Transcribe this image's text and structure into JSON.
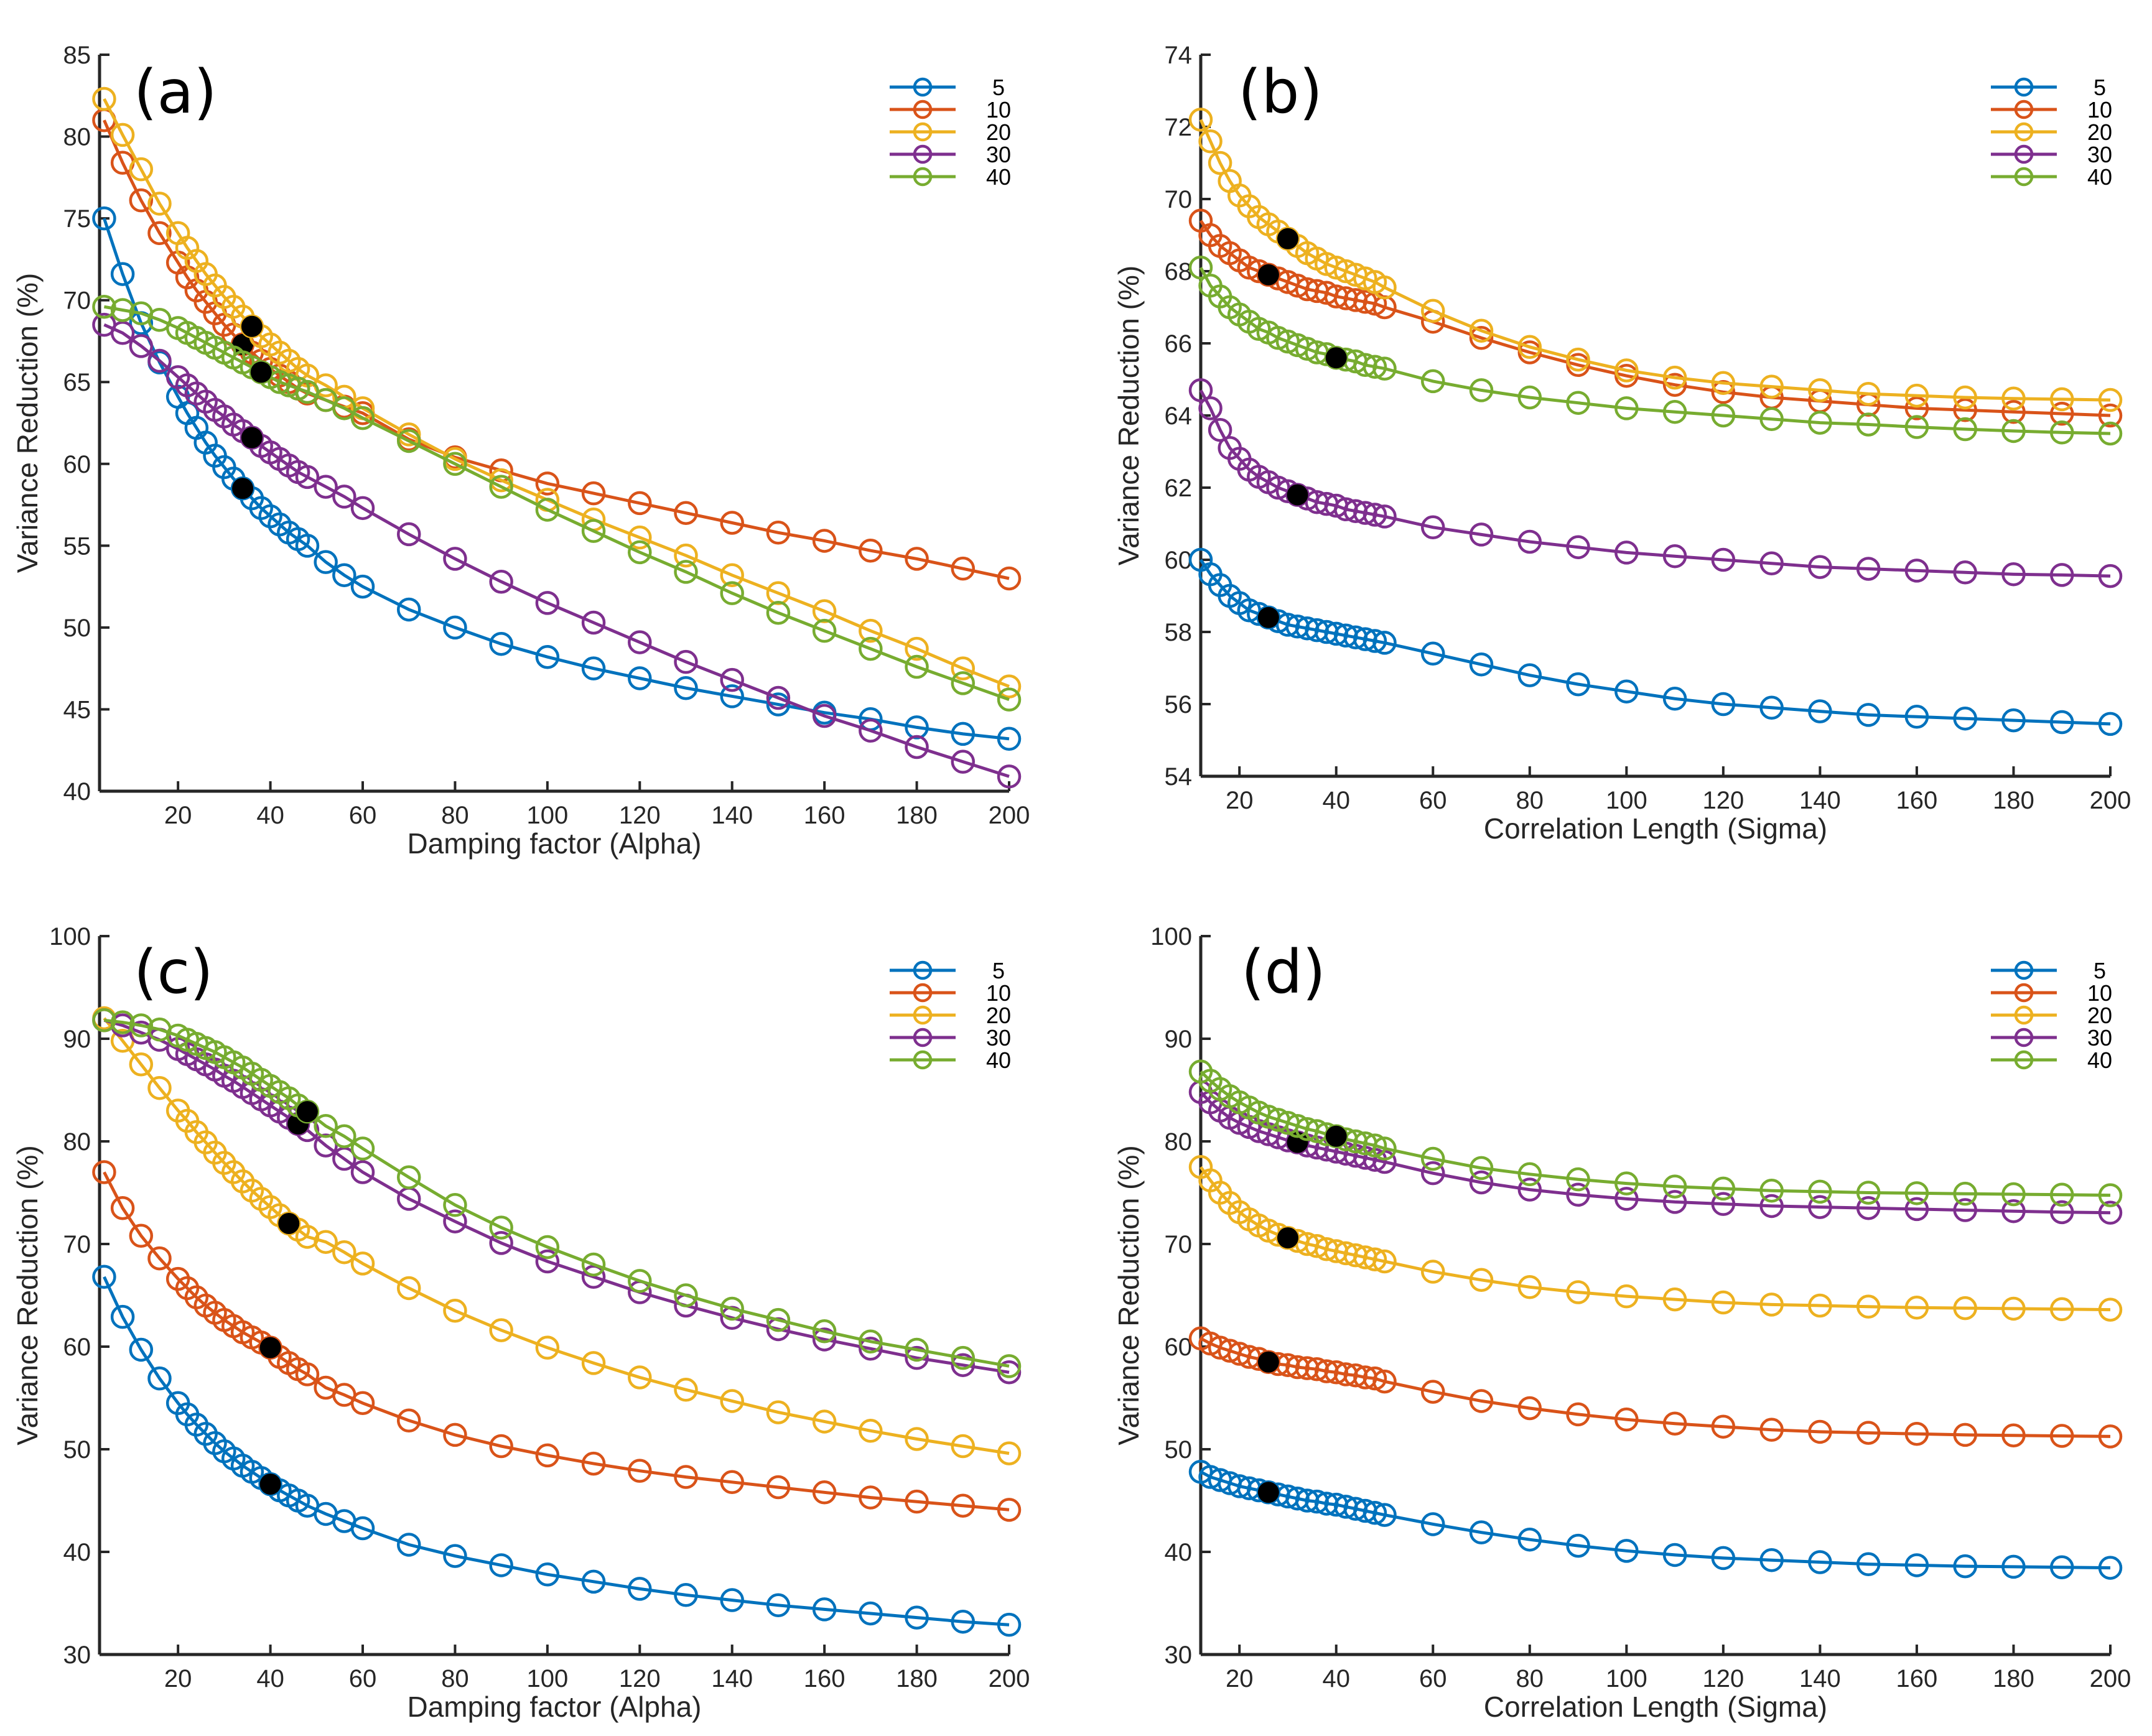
{
  "figure": {
    "series_names": [
      "5",
      "10",
      "20",
      "30",
      "40"
    ],
    "colors": [
      "#0072BD",
      "#D95319",
      "#EDB120",
      "#7E2F8E",
      "#77AC30"
    ],
    "optimum_marker_color": "#000000"
  },
  "chart_data": [
    {
      "panel": "(a)",
      "type": "line",
      "xlabel": "Damping factor (Alpha)",
      "ylabel": "Variance Reduction (%)",
      "xlim": [
        3,
        200
      ],
      "ylim": [
        40,
        85
      ],
      "xticks": [
        20,
        40,
        60,
        80,
        100,
        120,
        140,
        160,
        180,
        200
      ],
      "yticks": [
        40,
        45,
        50,
        55,
        60,
        65,
        70,
        75,
        80,
        85
      ],
      "grid": false,
      "legend_position": "top-right",
      "x": [
        4,
        8,
        12,
        16,
        20,
        22,
        24,
        26,
        28,
        30,
        32,
        34,
        36,
        38,
        40,
        42,
        44,
        46,
        48,
        52,
        56,
        60,
        70,
        80,
        90,
        100,
        110,
        120,
        130,
        140,
        150,
        160,
        170,
        180,
        190,
        200
      ],
      "series": [
        {
          "name": "5",
          "values": [
            75.0,
            71.6,
            68.6,
            66.2,
            64.1,
            63.1,
            62.2,
            61.3,
            60.5,
            59.8,
            59.1,
            58.5,
            57.9,
            57.3,
            56.8,
            56.3,
            55.8,
            55.4,
            55.0,
            54.0,
            53.2,
            52.5,
            51.1,
            50.0,
            49.0,
            48.2,
            47.5,
            46.9,
            46.3,
            45.8,
            45.3,
            44.8,
            44.4,
            43.9,
            43.5,
            43.2
          ],
          "optimum_x": 34
        },
        {
          "name": "10",
          "values": [
            81.0,
            78.4,
            76.1,
            74.1,
            72.3,
            71.4,
            70.6,
            69.9,
            69.2,
            68.5,
            67.9,
            67.3,
            66.8,
            66.3,
            65.8,
            65.4,
            65.0,
            64.6,
            64.3,
            63.9,
            63.5,
            63.1,
            61.5,
            60.4,
            59.6,
            58.8,
            58.2,
            57.6,
            57.0,
            56.4,
            55.8,
            55.3,
            54.7,
            54.2,
            53.6,
            53.0
          ],
          "optimum_x": 34
        },
        {
          "name": "20",
          "values": [
            82.3,
            80.1,
            78.0,
            75.9,
            74.1,
            73.2,
            72.4,
            71.6,
            70.9,
            70.2,
            69.6,
            69.0,
            68.4,
            67.8,
            67.3,
            66.8,
            66.3,
            65.8,
            65.4,
            64.8,
            64.1,
            63.4,
            61.8,
            60.3,
            59.0,
            57.8,
            56.6,
            55.5,
            54.4,
            53.2,
            52.1,
            51.0,
            49.8,
            48.7,
            47.5,
            46.4
          ],
          "optimum_x": 36
        },
        {
          "name": "30",
          "values": [
            68.5,
            68.0,
            67.2,
            66.3,
            65.3,
            64.8,
            64.3,
            63.8,
            63.3,
            62.9,
            62.4,
            62.0,
            61.6,
            61.1,
            60.7,
            60.3,
            59.9,
            59.5,
            59.2,
            58.6,
            58.0,
            57.3,
            55.7,
            54.2,
            52.8,
            51.5,
            50.3,
            49.1,
            47.9,
            46.8,
            45.7,
            44.6,
            43.7,
            42.7,
            41.8,
            40.9
          ],
          "optimum_x": 36
        },
        {
          "name": "40",
          "values": [
            69.6,
            69.4,
            69.2,
            68.8,
            68.3,
            68.0,
            67.7,
            67.4,
            67.1,
            66.8,
            66.5,
            66.2,
            65.9,
            65.6,
            65.3,
            65.0,
            64.8,
            64.6,
            64.4,
            63.9,
            63.4,
            62.8,
            61.4,
            60.0,
            58.6,
            57.2,
            55.9,
            54.6,
            53.4,
            52.1,
            50.9,
            49.8,
            48.7,
            47.6,
            46.6,
            45.6
          ],
          "optimum_x": 38
        }
      ]
    },
    {
      "panel": "(b)",
      "type": "line",
      "xlabel": "Correlation Length (Sigma)",
      "ylabel": "Variance Reduction (%)",
      "xlim": [
        12,
        200
      ],
      "ylim": [
        54,
        74
      ],
      "xticks": [
        20,
        40,
        60,
        80,
        100,
        120,
        140,
        160,
        180,
        200
      ],
      "yticks": [
        54,
        56,
        58,
        60,
        62,
        64,
        66,
        68,
        70,
        72,
        74
      ],
      "grid": false,
      "legend_position": "top-right",
      "x": [
        12,
        14,
        16,
        18,
        20,
        22,
        24,
        26,
        28,
        30,
        32,
        34,
        36,
        38,
        40,
        42,
        44,
        46,
        48,
        50,
        60,
        70,
        80,
        90,
        100,
        110,
        120,
        130,
        140,
        150,
        160,
        170,
        180,
        190,
        200
      ],
      "series": [
        {
          "name": "5",
          "values": [
            60.0,
            59.6,
            59.3,
            59.0,
            58.8,
            58.6,
            58.5,
            58.4,
            58.3,
            58.2,
            58.15,
            58.1,
            58.05,
            58.0,
            57.95,
            57.9,
            57.85,
            57.8,
            57.75,
            57.7,
            57.4,
            57.1,
            56.8,
            56.55,
            56.35,
            56.15,
            56.0,
            55.9,
            55.8,
            55.7,
            55.65,
            55.6,
            55.55,
            55.5,
            55.45
          ],
          "optimum_x": 26
        },
        {
          "name": "10",
          "values": [
            69.4,
            69.0,
            68.7,
            68.5,
            68.3,
            68.1,
            68.0,
            67.9,
            67.8,
            67.7,
            67.6,
            67.5,
            67.45,
            67.4,
            67.3,
            67.25,
            67.2,
            67.15,
            67.1,
            67.0,
            66.6,
            66.15,
            65.75,
            65.4,
            65.1,
            64.85,
            64.65,
            64.5,
            64.4,
            64.3,
            64.2,
            64.15,
            64.1,
            64.05,
            64.0
          ],
          "optimum_x": 26
        },
        {
          "name": "20",
          "values": [
            72.2,
            71.6,
            71.0,
            70.5,
            70.1,
            69.8,
            69.5,
            69.3,
            69.1,
            68.9,
            68.7,
            68.5,
            68.35,
            68.2,
            68.1,
            68.0,
            67.9,
            67.8,
            67.7,
            67.55,
            66.9,
            66.35,
            65.9,
            65.55,
            65.25,
            65.05,
            64.9,
            64.8,
            64.7,
            64.6,
            64.55,
            64.5,
            64.47,
            64.45,
            64.43
          ],
          "optimum_x": 30
        },
        {
          "name": "30",
          "values": [
            64.7,
            64.2,
            63.6,
            63.1,
            62.8,
            62.5,
            62.3,
            62.15,
            62.0,
            61.9,
            61.8,
            61.7,
            61.6,
            61.55,
            61.5,
            61.4,
            61.35,
            61.3,
            61.25,
            61.2,
            60.9,
            60.7,
            60.5,
            60.35,
            60.2,
            60.1,
            60.0,
            59.9,
            59.8,
            59.75,
            59.7,
            59.65,
            59.6,
            59.58,
            59.55
          ],
          "optimum_x": 32
        },
        {
          "name": "40",
          "values": [
            68.1,
            67.6,
            67.3,
            67.0,
            66.8,
            66.6,
            66.4,
            66.3,
            66.15,
            66.05,
            65.95,
            65.85,
            65.75,
            65.7,
            65.6,
            65.55,
            65.5,
            65.4,
            65.35,
            65.3,
            64.95,
            64.7,
            64.5,
            64.35,
            64.2,
            64.1,
            64.0,
            63.9,
            63.8,
            63.75,
            63.68,
            63.62,
            63.57,
            63.53,
            63.5
          ],
          "optimum_x": 40
        }
      ]
    },
    {
      "panel": "(c)",
      "type": "line",
      "xlabel": "Damping factor (Alpha)",
      "ylabel": "Variance Reduction (%)",
      "xlim": [
        3,
        200
      ],
      "ylim": [
        30,
        100
      ],
      "xticks": [
        20,
        40,
        60,
        80,
        100,
        120,
        140,
        160,
        180,
        200
      ],
      "yticks": [
        30,
        40,
        50,
        60,
        70,
        80,
        90,
        100
      ],
      "grid": false,
      "legend_position": "top-right",
      "x": [
        4,
        8,
        12,
        16,
        20,
        22,
        24,
        26,
        28,
        30,
        32,
        34,
        36,
        38,
        40,
        42,
        44,
        46,
        48,
        52,
        56,
        60,
        70,
        80,
        90,
        100,
        110,
        120,
        130,
        140,
        150,
        160,
        170,
        180,
        190,
        200
      ],
      "series": [
        {
          "name": "5",
          "values": [
            66.8,
            62.9,
            59.7,
            56.9,
            54.5,
            53.4,
            52.4,
            51.5,
            50.6,
            49.8,
            49.1,
            48.4,
            47.8,
            47.2,
            46.6,
            46.0,
            45.5,
            45.0,
            44.5,
            43.7,
            43.0,
            42.3,
            40.7,
            39.6,
            38.7,
            37.8,
            37.1,
            36.4,
            35.8,
            35.3,
            34.8,
            34.4,
            34.0,
            33.6,
            33.2,
            32.9
          ],
          "optimum_x": 40
        },
        {
          "name": "10",
          "values": [
            77.0,
            73.5,
            70.8,
            68.6,
            66.6,
            65.7,
            64.8,
            64.0,
            63.3,
            62.6,
            62.0,
            61.4,
            60.9,
            60.4,
            59.9,
            59.0,
            58.4,
            57.8,
            57.3,
            56.0,
            55.3,
            54.5,
            52.8,
            51.4,
            50.3,
            49.4,
            48.6,
            47.9,
            47.3,
            46.8,
            46.3,
            45.8,
            45.3,
            44.9,
            44.5,
            44.1
          ],
          "optimum_x": 40
        },
        {
          "name": "20",
          "values": [
            92.0,
            89.8,
            87.5,
            85.2,
            83.0,
            82.0,
            80.9,
            79.9,
            78.9,
            77.9,
            77.0,
            76.1,
            75.2,
            74.4,
            73.6,
            72.8,
            72.0,
            71.4,
            70.7,
            70.2,
            69.2,
            68.1,
            65.7,
            63.5,
            61.6,
            59.9,
            58.4,
            57.0,
            55.8,
            54.7,
            53.6,
            52.7,
            51.8,
            51.0,
            50.3,
            49.6
          ],
          "optimum_x": 44
        },
        {
          "name": "30",
          "values": [
            91.8,
            91.3,
            90.6,
            89.9,
            89.0,
            88.5,
            88.0,
            87.5,
            87.0,
            86.4,
            85.9,
            85.3,
            84.7,
            84.1,
            83.5,
            82.9,
            82.3,
            81.7,
            81.1,
            79.6,
            78.3,
            77.0,
            74.4,
            72.2,
            70.1,
            68.3,
            66.8,
            65.3,
            64.0,
            62.8,
            61.7,
            60.7,
            59.8,
            58.9,
            58.2,
            57.5
          ],
          "optimum_x": 46
        },
        {
          "name": "40",
          "values": [
            91.8,
            91.6,
            91.3,
            90.9,
            90.3,
            89.9,
            89.5,
            89.1,
            88.7,
            88.2,
            87.7,
            87.2,
            86.6,
            86.0,
            85.4,
            84.8,
            84.2,
            83.5,
            82.9,
            81.5,
            80.5,
            79.3,
            76.5,
            73.8,
            71.6,
            69.7,
            68.0,
            66.4,
            65.0,
            63.7,
            62.6,
            61.5,
            60.5,
            59.7,
            58.9,
            58.1
          ],
          "optimum_x": 48
        }
      ]
    },
    {
      "panel": "(d)",
      "type": "line",
      "xlabel": "Correlation Length (Sigma)",
      "ylabel": "Variance Reduction (%)",
      "xlim": [
        12,
        200
      ],
      "ylim": [
        30,
        100
      ],
      "xticks": [
        20,
        40,
        60,
        80,
        100,
        120,
        140,
        160,
        180,
        200
      ],
      "yticks": [
        30,
        40,
        50,
        60,
        70,
        80,
        90,
        100
      ],
      "grid": false,
      "legend_position": "top-right",
      "x": [
        12,
        14,
        16,
        18,
        20,
        22,
        24,
        26,
        28,
        30,
        32,
        34,
        36,
        38,
        40,
        42,
        44,
        46,
        48,
        50,
        60,
        70,
        80,
        90,
        100,
        110,
        120,
        130,
        140,
        150,
        160,
        170,
        180,
        190,
        200
      ],
      "series": [
        {
          "name": "5",
          "values": [
            47.8,
            47.3,
            47.0,
            46.7,
            46.4,
            46.2,
            46.0,
            45.8,
            45.6,
            45.4,
            45.2,
            45.0,
            44.9,
            44.7,
            44.6,
            44.4,
            44.2,
            44.0,
            43.8,
            43.6,
            42.7,
            41.9,
            41.2,
            40.6,
            40.1,
            39.7,
            39.4,
            39.2,
            39.0,
            38.8,
            38.7,
            38.6,
            38.55,
            38.5,
            38.45
          ],
          "optimum_x": 26
        },
        {
          "name": "10",
          "values": [
            60.8,
            60.3,
            59.9,
            59.6,
            59.3,
            59.0,
            58.8,
            58.5,
            58.3,
            58.2,
            58.0,
            57.9,
            57.8,
            57.6,
            57.5,
            57.3,
            57.2,
            57.0,
            56.9,
            56.6,
            55.6,
            54.7,
            54.0,
            53.4,
            52.9,
            52.5,
            52.2,
            51.9,
            51.7,
            51.6,
            51.5,
            51.4,
            51.35,
            51.3,
            51.25
          ],
          "optimum_x": 26
        },
        {
          "name": "20",
          "values": [
            77.5,
            76.2,
            75.0,
            74.0,
            73.1,
            72.4,
            71.8,
            71.3,
            70.9,
            70.6,
            70.3,
            70.0,
            69.8,
            69.5,
            69.3,
            69.1,
            68.9,
            68.7,
            68.5,
            68.3,
            67.3,
            66.5,
            65.8,
            65.3,
            64.9,
            64.6,
            64.3,
            64.1,
            64.0,
            63.9,
            63.8,
            63.75,
            63.7,
            63.65,
            63.6
          ],
          "optimum_x": 30
        },
        {
          "name": "30",
          "values": [
            84.8,
            83.8,
            83.0,
            82.3,
            81.8,
            81.4,
            81.0,
            80.7,
            80.4,
            80.1,
            79.9,
            79.6,
            79.4,
            79.2,
            79.0,
            78.8,
            78.6,
            78.4,
            78.2,
            78.0,
            76.9,
            76.0,
            75.3,
            74.8,
            74.4,
            74.1,
            73.9,
            73.7,
            73.6,
            73.5,
            73.4,
            73.3,
            73.2,
            73.1,
            73.05
          ],
          "optimum_x": 32
        },
        {
          "name": "40",
          "values": [
            86.8,
            85.9,
            85.1,
            84.4,
            83.8,
            83.3,
            82.8,
            82.4,
            82.1,
            81.8,
            81.5,
            81.2,
            81.0,
            80.7,
            80.5,
            80.2,
            80.0,
            79.8,
            79.6,
            79.3,
            78.3,
            77.4,
            76.8,
            76.3,
            75.9,
            75.6,
            75.4,
            75.2,
            75.1,
            75.0,
            74.95,
            74.9,
            74.85,
            74.8,
            74.75
          ],
          "optimum_x": 40
        }
      ]
    }
  ]
}
